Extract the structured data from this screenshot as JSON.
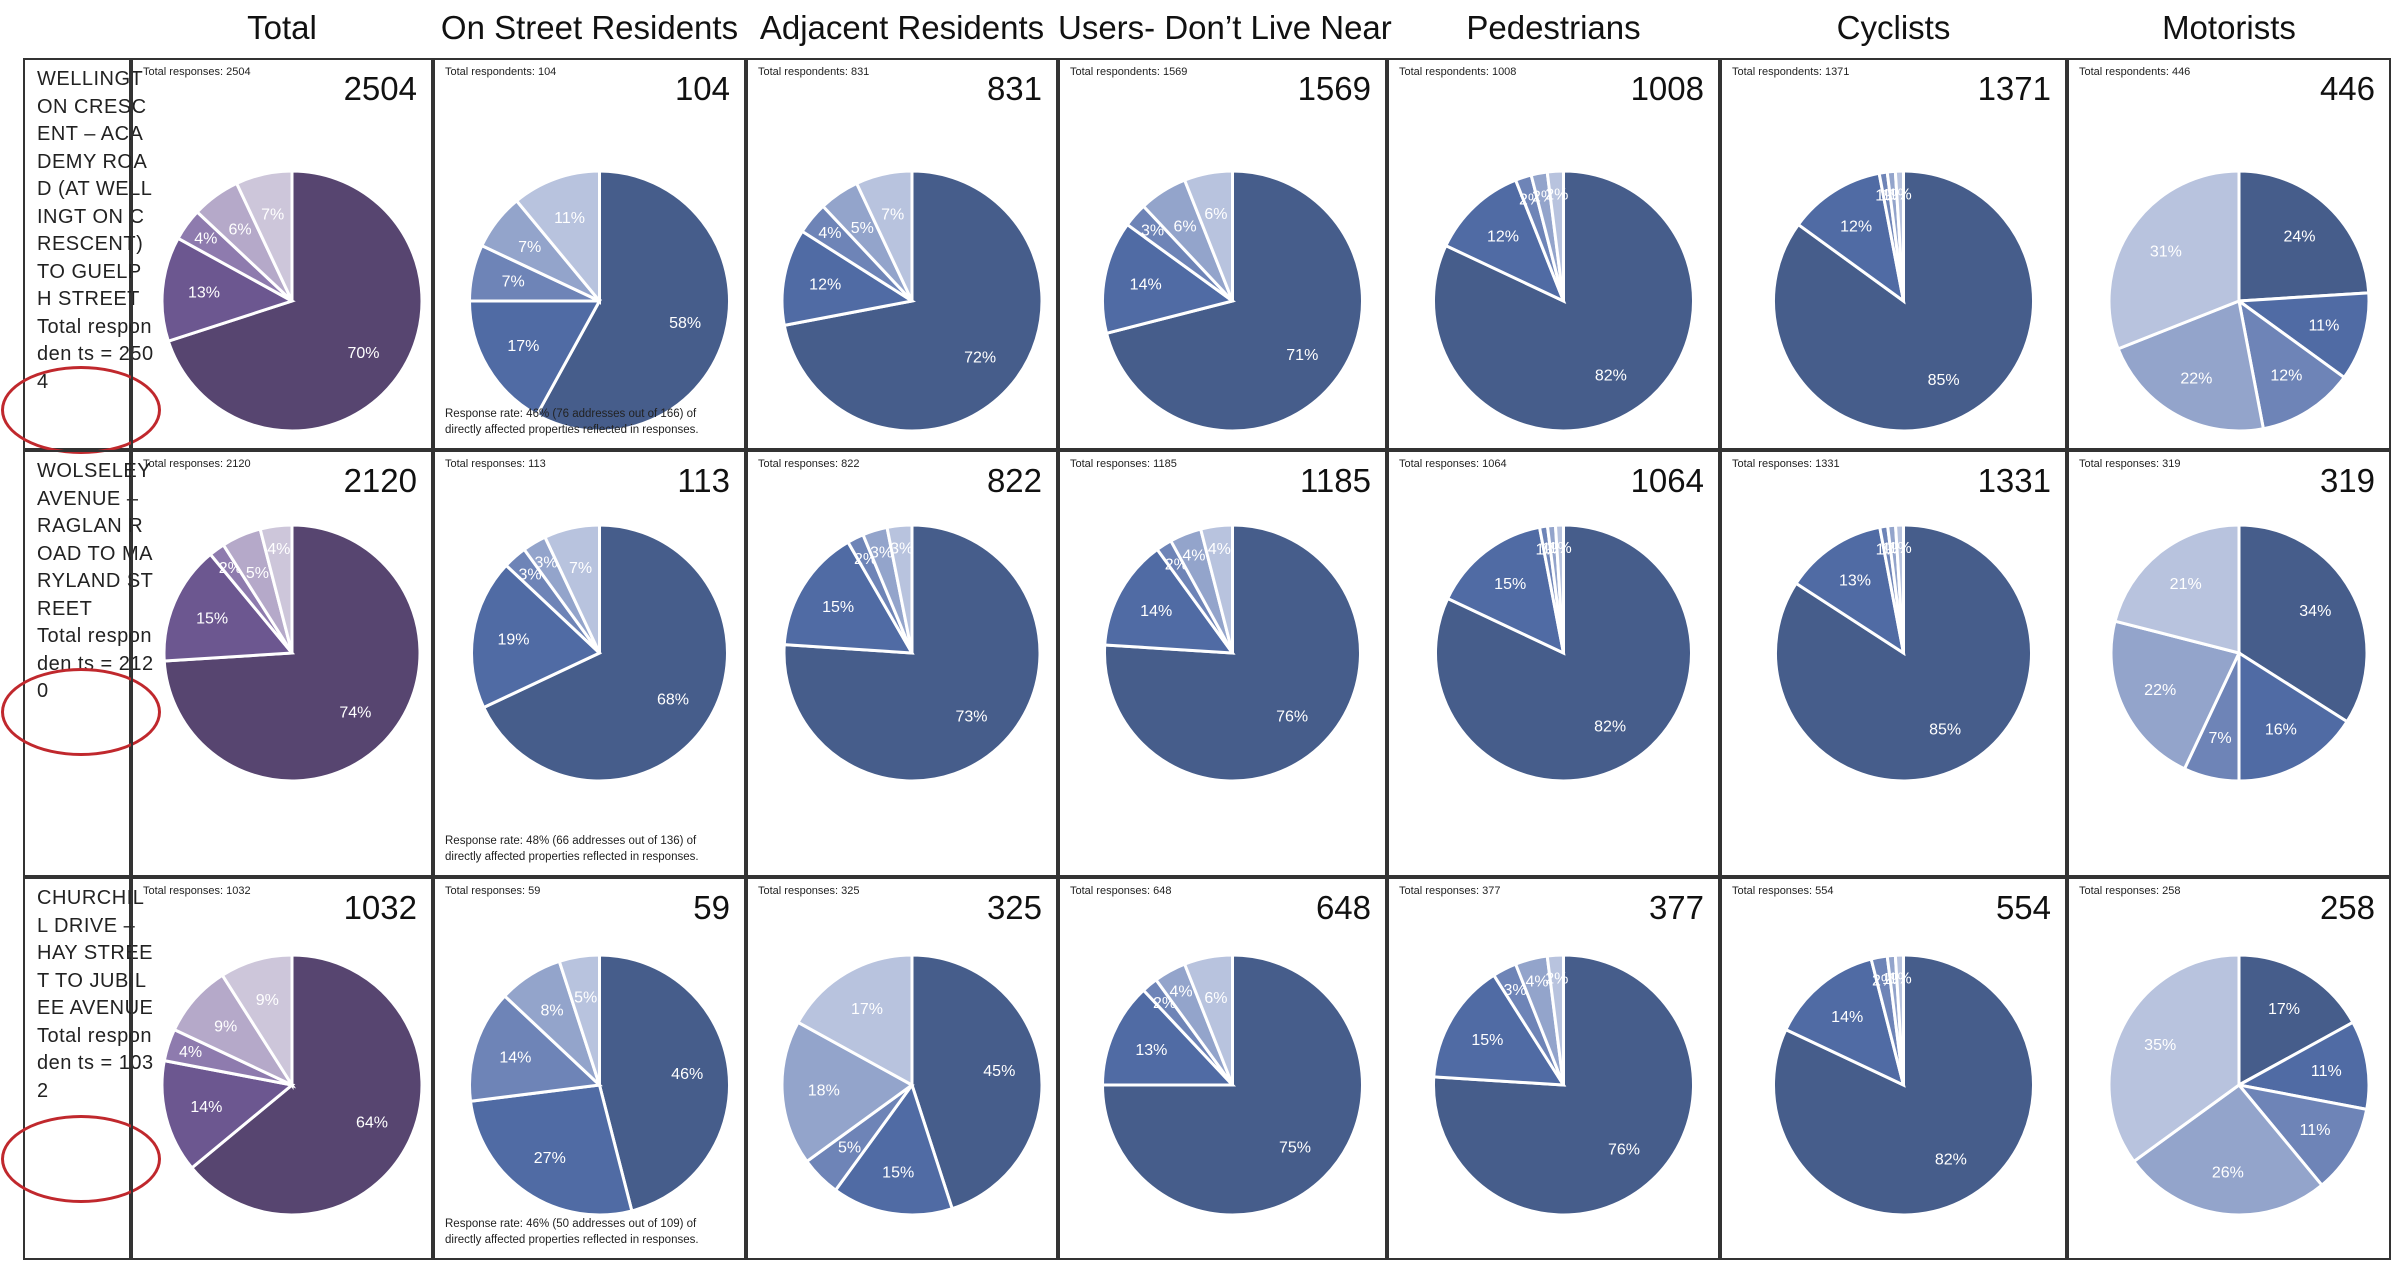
{
  "columns": [
    "Total",
    "On Street Residents",
    "Adjacent Residents",
    "Users- Don’t Live Near",
    "Pedestrians",
    "Cyclists",
    "Motorists"
  ],
  "colors": {
    "purple": [
      "#574570",
      "#6c5790",
      "#8e7bae",
      "#b5a9c9",
      "#cdc6da"
    ],
    "blue": [
      "#465d8b",
      "#506ba4",
      "#6e84b7",
      "#93a4cb",
      "#b8c3de"
    ]
  },
  "rows": [
    {
      "label": "WELLINGT ON CRESCENT – ACADEMY ROAD (AT WELLINGT ON CRESCENT) TO GUELPH STREET",
      "respondents": "Total responden ts = 2504",
      "cells": [
        {
          "small": "Total responses: 2504",
          "count": "2504"
        },
        {
          "small": "Total respondents: 104",
          "count": "104",
          "note": "Response rate: 46% (76 addresses out of 166) of directly affected properties reflected in responses."
        },
        {
          "small": "Total respondents: 831",
          "count": "831"
        },
        {
          "small": "Total respondents: 1569",
          "count": "1569"
        },
        {
          "small": "Total respondents: 1008",
          "count": "1008"
        },
        {
          "small": "Total respondents: 1371",
          "count": "1371"
        },
        {
          "small": "Total respondents: 446",
          "count": "446"
        }
      ]
    },
    {
      "label": "WOLSELEY AVENUE – RAGLAN ROAD TO MARYLAND STREET",
      "respondents": "Total responden ts = 2120",
      "cells": [
        {
          "small": "Total responses: 2120",
          "count": "2120"
        },
        {
          "small": "Total responses: 113",
          "count": "113",
          "note": "Response rate: 48% (66 addresses out of 136) of directly affected properties reflected in responses."
        },
        {
          "small": "Total responses: 822",
          "count": "822"
        },
        {
          "small": "Total responses: 1185",
          "count": "1185"
        },
        {
          "small": "Total responses: 1064",
          "count": "1064"
        },
        {
          "small": "Total responses: 1331",
          "count": "1331"
        },
        {
          "small": "Total responses: 319",
          "count": "319"
        }
      ]
    },
    {
      "label": "CHURCHIL L DRIVE – HAY STREET TO JUBILEE AVENUE",
      "respondents": "Total responden ts = 1032",
      "cells": [
        {
          "small": "Total responses: 1032",
          "count": "1032"
        },
        {
          "small": "Total responses: 59",
          "count": "59",
          "note": "Response rate: 46% (50 addresses out of 109) of directly affected properties reflected in responses."
        },
        {
          "small": "Total responses: 325",
          "count": "325"
        },
        {
          "small": "Total responses: 648",
          "count": "648"
        },
        {
          "small": "Total responses: 377",
          "count": "377"
        },
        {
          "small": "Total responses: 554",
          "count": "554"
        },
        {
          "small": "Total responses: 258",
          "count": "258"
        }
      ]
    }
  ],
  "chart_data": [
    {
      "type": "pie",
      "row": "WELLINGTON CRESCENT",
      "column": "Total",
      "values": [
        70,
        13,
        4,
        6,
        7
      ],
      "labels": [
        "70%",
        "13%",
        "4%",
        "6%",
        "7%"
      ]
    },
    {
      "type": "pie",
      "row": "WELLINGTON CRESCENT",
      "column": "On Street Residents",
      "values": [
        58,
        17,
        7,
        7,
        11
      ],
      "labels": [
        "58%",
        "17%",
        "7%",
        "7%",
        "11%"
      ]
    },
    {
      "type": "pie",
      "row": "WELLINGTON CRESCENT",
      "column": "Adjacent Residents",
      "values": [
        72,
        12,
        4,
        5,
        7
      ],
      "labels": [
        "72%",
        "12%",
        "4%",
        "5%",
        "7%"
      ]
    },
    {
      "type": "pie",
      "row": "WELLINGTON CRESCENT",
      "column": "Users- Don’t Live Near",
      "values": [
        71,
        14,
        3,
        6,
        6
      ],
      "labels": [
        "71%",
        "14%",
        "3%",
        "6%",
        "6%"
      ]
    },
    {
      "type": "pie",
      "row": "WELLINGTON CRESCENT",
      "column": "Pedestrians",
      "values": [
        82,
        12,
        2,
        2,
        2
      ],
      "labels": [
        "82%",
        "12%",
        "2%",
        "2%",
        "2%"
      ]
    },
    {
      "type": "pie",
      "row": "WELLINGTON CRESCENT",
      "column": "Cyclists",
      "values": [
        85,
        12,
        1,
        1,
        1
      ],
      "labels": [
        "85%",
        "12%",
        "1%",
        "1%",
        "1%"
      ]
    },
    {
      "type": "pie",
      "row": "WELLINGTON CRESCENT",
      "column": "Motorists",
      "values": [
        24,
        11,
        12,
        22,
        31
      ],
      "labels": [
        "24%",
        "11%",
        "12%",
        "22%",
        "31%"
      ]
    },
    {
      "type": "pie",
      "row": "WOLSELEY AVENUE",
      "column": "Total",
      "values": [
        74,
        15,
        2,
        5,
        4
      ],
      "labels": [
        "74%",
        "15%",
        "2%",
        "5%",
        "4%"
      ]
    },
    {
      "type": "pie",
      "row": "WOLSELEY AVENUE",
      "column": "On Street Residents",
      "values": [
        68,
        19,
        3,
        3,
        7
      ],
      "labels": [
        "68%",
        "19%",
        "3%",
        "3%",
        "7%"
      ]
    },
    {
      "type": "pie",
      "row": "WOLSELEY AVENUE",
      "column": "Adjacent Residents",
      "values": [
        73,
        15,
        2,
        3,
        3
      ],
      "labels": [
        "73%",
        "15%",
        "2%",
        "3%",
        "3%"
      ]
    },
    {
      "type": "pie",
      "row": "WOLSELEY AVENUE",
      "column": "Users- Don’t Live Near",
      "values": [
        76,
        14,
        2,
        4,
        4
      ],
      "labels": [
        "76%",
        "14%",
        "2%",
        "4%",
        "4%"
      ]
    },
    {
      "type": "pie",
      "row": "WOLSELEY AVENUE",
      "column": "Pedestrians",
      "values": [
        82,
        15,
        1,
        1,
        1
      ],
      "labels": [
        "82%",
        "15%",
        "1%",
        "1%",
        "1%"
      ]
    },
    {
      "type": "pie",
      "row": "WOLSELEY AVENUE",
      "column": "Cyclists",
      "values": [
        85,
        13,
        1,
        1,
        1
      ],
      "labels": [
        "85%",
        "13%",
        "1%",
        "1%",
        "1%"
      ]
    },
    {
      "type": "pie",
      "row": "WOLSELEY AVENUE",
      "column": "Motorists",
      "values": [
        34,
        16,
        7,
        22,
        21
      ],
      "labels": [
        "34%",
        "16%",
        "7%",
        "22%",
        "21%"
      ]
    },
    {
      "type": "pie",
      "row": "CHURCHILL DRIVE",
      "column": "Total",
      "values": [
        64,
        14,
        4,
        9,
        9
      ],
      "labels": [
        "64%",
        "14%",
        "4%",
        "9%",
        "9%"
      ]
    },
    {
      "type": "pie",
      "row": "CHURCHILL DRIVE",
      "column": "On Street Residents",
      "values": [
        46,
        27,
        14,
        8,
        5
      ],
      "labels": [
        "46%",
        "27%",
        "14%",
        "8%",
        "5%"
      ]
    },
    {
      "type": "pie",
      "row": "CHURCHILL DRIVE",
      "column": "Adjacent Residents",
      "values": [
        45,
        15,
        5,
        18,
        17
      ],
      "labels": [
        "45%",
        "15%",
        "5%",
        "18%",
        "17%"
      ]
    },
    {
      "type": "pie",
      "row": "CHURCHILL DRIVE",
      "column": "Users- Don’t Live Near",
      "values": [
        75,
        13,
        2,
        4,
        6
      ],
      "labels": [
        "75%",
        "13%",
        "2%",
        "4%",
        "6%"
      ]
    },
    {
      "type": "pie",
      "row": "CHURCHILL DRIVE",
      "column": "Pedestrians",
      "values": [
        76,
        15,
        3,
        4,
        2
      ],
      "labels": [
        "76%",
        "15%",
        "3%",
        "4%",
        "2%"
      ]
    },
    {
      "type": "pie",
      "row": "CHURCHILL DRIVE",
      "column": "Cyclists",
      "values": [
        82,
        14,
        2,
        1,
        1
      ],
      "labels": [
        "82%",
        "14%",
        "2%",
        "1%",
        "1%"
      ]
    },
    {
      "type": "pie",
      "row": "CHURCHILL DRIVE",
      "column": "Motorists",
      "values": [
        17,
        11,
        11,
        26,
        35
      ],
      "labels": [
        "17%",
        "11%",
        "11%",
        "26%",
        "35%"
      ]
    }
  ]
}
